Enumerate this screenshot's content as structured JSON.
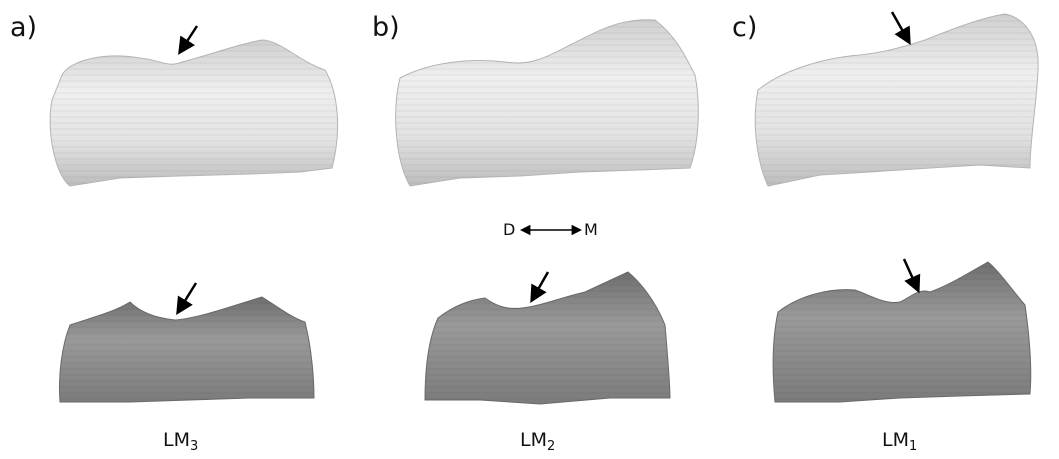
{
  "panels": [
    {
      "letter": "a)",
      "label_main": "LM",
      "label_sub": "3"
    },
    {
      "letter": "b)",
      "label_main": "LM",
      "label_sub": "2"
    },
    {
      "letter": "c)",
      "label_main": "LM",
      "label_sub": "1"
    }
  ],
  "orientation": {
    "left": "D",
    "right": "M"
  },
  "colors": {
    "top_tooth_fill": "#dcdcdc",
    "bottom_tooth_fill": "#8a8a8a",
    "arrow": "#000000",
    "text": "#111111"
  }
}
